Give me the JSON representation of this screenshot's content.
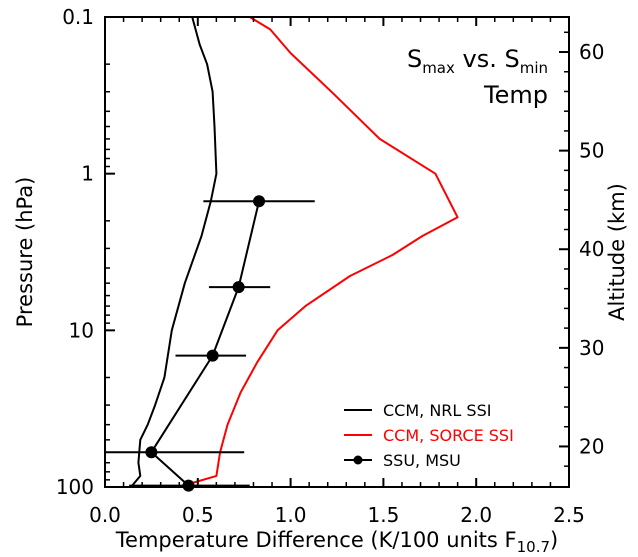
{
  "chart_data": {
    "type": "line",
    "ylabel": "Pressure (hPa)",
    "ylabel_right": "Altitude (km)",
    "xlabel": {
      "main": "Temperature Difference (K/100 units F",
      "sub": "10.7",
      "close": ")"
    },
    "xlim": [
      0.0,
      2.5
    ],
    "ylim": [
      100,
      0.1
    ],
    "yscale": "log",
    "x_ticks": [
      "0.0",
      "0.5",
      "1.0",
      "1.5",
      "2.0",
      "2.5"
    ],
    "y_ticks": [
      "0.1",
      "1",
      "10",
      "100"
    ],
    "y_right_ticks": [
      "20",
      "30",
      "40",
      "50",
      "60"
    ],
    "annotation": {
      "line1_a": "S",
      "line1_a_sub": "max",
      "line1_mid": " vs. ",
      "line1_b": "S",
      "line1_b_sub": "min",
      "line2": "Temp"
    },
    "legend": {
      "position": "lower-right"
    },
    "series": [
      {
        "name": "CCM, NRL SSI",
        "color": "#000000",
        "marker": "none",
        "points": [
          [
            0.14,
            100
          ],
          [
            0.19,
            85
          ],
          [
            0.18,
            70
          ],
          [
            0.19,
            50
          ],
          [
            0.23,
            40
          ],
          [
            0.27,
            30
          ],
          [
            0.32,
            20
          ],
          [
            0.36,
            10
          ],
          [
            0.43,
            5
          ],
          [
            0.52,
            2.5
          ],
          [
            0.57,
            1.5
          ],
          [
            0.6,
            1.0
          ],
          [
            0.59,
            0.5
          ],
          [
            0.58,
            0.3
          ],
          [
            0.55,
            0.2
          ],
          [
            0.51,
            0.15
          ],
          [
            0.47,
            0.1
          ]
        ]
      },
      {
        "name": "CCM, SORCE SSI",
        "color": "#ff0000",
        "marker": "none",
        "points": [
          [
            0.33,
            110
          ],
          [
            0.46,
            95
          ],
          [
            0.6,
            85
          ],
          [
            0.62,
            60
          ],
          [
            0.66,
            40
          ],
          [
            0.73,
            25
          ],
          [
            0.82,
            16
          ],
          [
            0.93,
            10
          ],
          [
            1.08,
            7
          ],
          [
            1.32,
            4.5
          ],
          [
            1.55,
            3.3
          ],
          [
            1.71,
            2.5
          ],
          [
            1.9,
            1.9
          ],
          [
            1.78,
            1.0
          ],
          [
            1.48,
            0.6
          ],
          [
            1.22,
            0.3
          ],
          [
            1.0,
            0.17
          ],
          [
            0.89,
            0.12
          ],
          [
            0.78,
            0.1
          ]
        ]
      },
      {
        "name": "SSU, MSU",
        "color": "#000000",
        "marker": "circle",
        "points": [
          [
            0.83,
            1.5
          ],
          [
            0.72,
            5.3
          ],
          [
            0.58,
            14.5
          ],
          [
            0.25,
            60
          ],
          [
            0.45,
            98
          ]
        ],
        "xerr": [
          [
            0.53,
            1.13
          ],
          [
            0.56,
            0.89
          ],
          [
            0.38,
            0.76
          ],
          [
            -0.25,
            0.75
          ],
          [
            0.13,
            0.78
          ]
        ]
      }
    ]
  }
}
